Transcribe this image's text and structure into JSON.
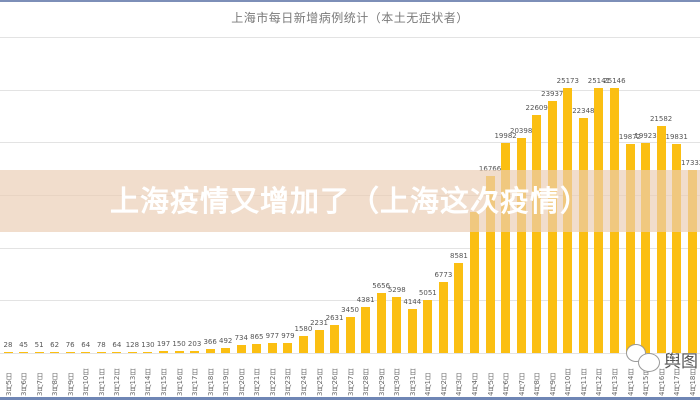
{
  "chart_data": {
    "type": "bar",
    "title": "上海市每日新增病例统计（本土无症状者）",
    "xlabel": "",
    "ylabel": "",
    "ylim": [
      0,
      30000
    ],
    "grid": true,
    "legend": null,
    "categories": [
      "3月5日",
      "3月6日",
      "3月7日",
      "3月8日",
      "3月9日",
      "3月10日",
      "3月11日",
      "3月12日",
      "3月13日",
      "3月14日",
      "3月15日",
      "3月16日",
      "3月17日",
      "3月18日",
      "3月19日",
      "3月20日",
      "3月21日",
      "3月22日",
      "3月23日",
      "3月24日",
      "3月25日",
      "3月26日",
      "3月27日",
      "3月28日",
      "3月29日",
      "3月30日",
      "3月31日",
      "4月1日",
      "4月2日",
      "4月3日",
      "4月4日",
      "4月5日",
      "4月6日",
      "4月7日",
      "4月8日",
      "4月9日",
      "4月10日",
      "4月11日",
      "4月12日",
      "4月13日",
      "4月14日",
      "4月15日",
      "4月16日",
      "4月17日",
      "4月18日"
    ],
    "values": [
      28,
      45,
      51,
      62,
      76,
      64,
      78,
      64,
      128,
      130,
      197,
      150,
      203,
      366,
      492,
      734,
      865,
      977,
      979,
      1580,
      2231,
      2631,
      3450,
      4381,
      5656,
      5298,
      4144,
      5051,
      6773,
      8581,
      13354,
      16766,
      19982,
      20398,
      22609,
      23937,
      25173,
      22348,
      25141,
      25146,
      19872,
      19923,
      21582,
      19831,
      17332
    ],
    "value_labels_hidden": [
      30
    ],
    "bar_color": "#fbbf12"
  },
  "overlay": {
    "banner_text": "上海疫情又增加了（上海这次疫情）"
  },
  "watermark": {
    "text": "舆图"
  }
}
